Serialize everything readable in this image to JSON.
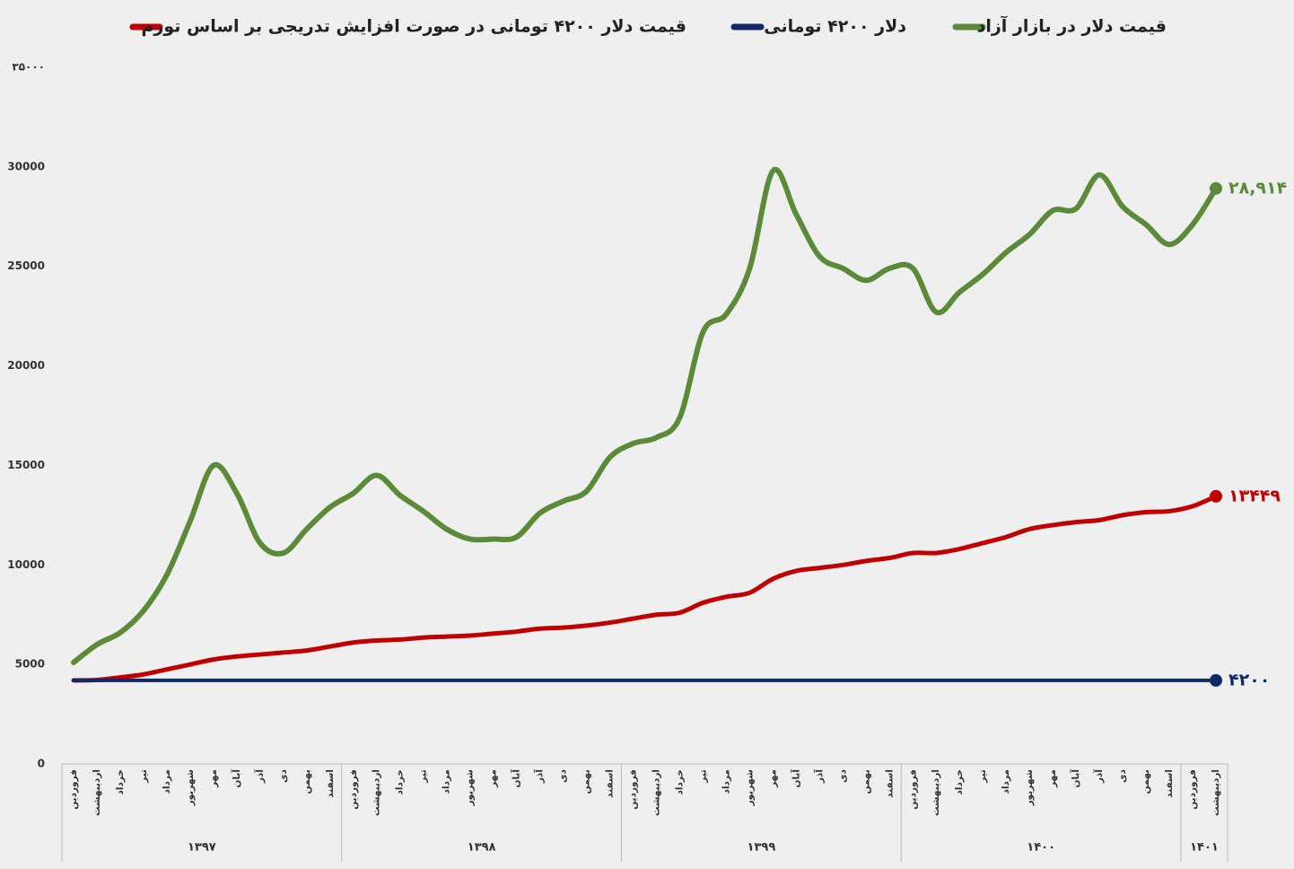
{
  "chart_data": {
    "type": "line",
    "categories": [
      "فروردین",
      "اردیبهشت",
      "خرداد",
      "تیر",
      "مرداد",
      "شهریور",
      "مهر",
      "آبان",
      "آذر",
      "دی",
      "بهمن",
      "اسفند",
      "فروردین",
      "اردیبهشت",
      "خرداد",
      "تیر",
      "مرداد",
      "شهریور",
      "مهر",
      "آبان",
      "آذر",
      "دی",
      "بهمن",
      "اسفند",
      "فروردین",
      "اردیبهشت",
      "خرداد",
      "تیر",
      "مرداد",
      "شهریور",
      "مهر",
      "آبان",
      "آذر",
      "دی",
      "بهمن",
      "اسفند",
      "فروردین",
      "اردیبهشت",
      "خرداد",
      "تیر",
      "مرداد",
      "شهریور",
      "مهر",
      "آبان",
      "آذر",
      "دی",
      "بهمن",
      "اسفند",
      "فروردین",
      "اردیبهشت"
    ],
    "x_groups": [
      {
        "label": "۱۳۹۷",
        "count": 12
      },
      {
        "label": "۱۳۹۸",
        "count": 12
      },
      {
        "label": "۱۳۹۹",
        "count": 12
      },
      {
        "label": "۱۴۰۰",
        "count": 12
      },
      {
        "label": "۱۴۰۱",
        "count": 2
      }
    ],
    "series": [
      {
        "name": "قیمت دلار در بازار آزاد",
        "color": "#5b8a38",
        "values": [
          5100,
          6000,
          6600,
          7700,
          9500,
          12200,
          15000,
          13600,
          11100,
          10600,
          11800,
          12900,
          13600,
          14500,
          13500,
          12700,
          11800,
          11300,
          11300,
          11400,
          12600,
          13200,
          13700,
          15400,
          16100,
          16400,
          17400,
          21700,
          22600,
          24900,
          29800,
          27600,
          25500,
          24900,
          24300,
          24900,
          24900,
          22700,
          23700,
          24600,
          25700,
          26600,
          27800,
          27900,
          29600,
          28000,
          27100,
          26100,
          27100,
          28914
        ],
        "value_labels": [
          null,
          null,
          null,
          null,
          null,
          null,
          null,
          null,
          null,
          null,
          null,
          null,
          null,
          null,
          null,
          null,
          null,
          null,
          null,
          null,
          null,
          null,
          null,
          null,
          null,
          null,
          null,
          null,
          null,
          null,
          null,
          null,
          null,
          null,
          null,
          null,
          null,
          null,
          null,
          null,
          null,
          null,
          null,
          null,
          null,
          null,
          null,
          null,
          null,
          "۲۸,۹۱۴"
        ]
      },
      {
        "name": "دلار ۴۲۰۰ تومانی",
        "color": "#0f2a66",
        "values": [
          4200,
          4200,
          4200,
          4200,
          4200,
          4200,
          4200,
          4200,
          4200,
          4200,
          4200,
          4200,
          4200,
          4200,
          4200,
          4200,
          4200,
          4200,
          4200,
          4200,
          4200,
          4200,
          4200,
          4200,
          4200,
          4200,
          4200,
          4200,
          4200,
          4200,
          4200,
          4200,
          4200,
          4200,
          4200,
          4200,
          4200,
          4200,
          4200,
          4200,
          4200,
          4200,
          4200,
          4200,
          4200,
          4200,
          4200,
          4200,
          4200,
          4200
        ],
        "value_labels": [
          null,
          null,
          null,
          null,
          null,
          null,
          null,
          null,
          null,
          null,
          null,
          null,
          null,
          null,
          null,
          null,
          null,
          null,
          null,
          null,
          null,
          null,
          null,
          null,
          null,
          null,
          null,
          null,
          null,
          null,
          null,
          null,
          null,
          null,
          null,
          null,
          null,
          null,
          null,
          null,
          null,
          null,
          null,
          null,
          null,
          null,
          null,
          null,
          null,
          "۴۲۰۰"
        ]
      },
      {
        "name": "قیمت دلار ۴۲۰۰ تومانی در صورت افزایش تدریجی بر اساس تورم",
        "color": "#c00000",
        "values": [
          4200,
          4220,
          4350,
          4500,
          4750,
          5000,
          5250,
          5400,
          5500,
          5600,
          5700,
          5900,
          6100,
          6200,
          6250,
          6350,
          6400,
          6450,
          6550,
          6650,
          6800,
          6850,
          6950,
          7100,
          7300,
          7500,
          7600,
          8100,
          8400,
          8600,
          9300,
          9700,
          9850,
          10000,
          10200,
          10350,
          10600,
          10600,
          10800,
          11100,
          11400,
          11800,
          12000,
          12150,
          12250,
          12500,
          12650,
          12700,
          12950,
          13449
        ],
        "value_labels": [
          null,
          null,
          null,
          null,
          null,
          null,
          null,
          null,
          null,
          null,
          null,
          null,
          null,
          null,
          null,
          null,
          null,
          null,
          null,
          null,
          null,
          null,
          null,
          null,
          null,
          null,
          null,
          null,
          null,
          null,
          null,
          null,
          null,
          null,
          null,
          null,
          null,
          null,
          null,
          null,
          null,
          null,
          null,
          null,
          null,
          null,
          null,
          null,
          null,
          "۱۳۴۴۹"
        ]
      }
    ],
    "ylim": [
      0,
      35000
    ],
    "yticks": [
      0,
      5000,
      10000,
      15000,
      20000,
      25000,
      30000,
      {
        "value": 35000,
        "label": "۳۵۰۰۰"
      }
    ],
    "grid": false
  }
}
